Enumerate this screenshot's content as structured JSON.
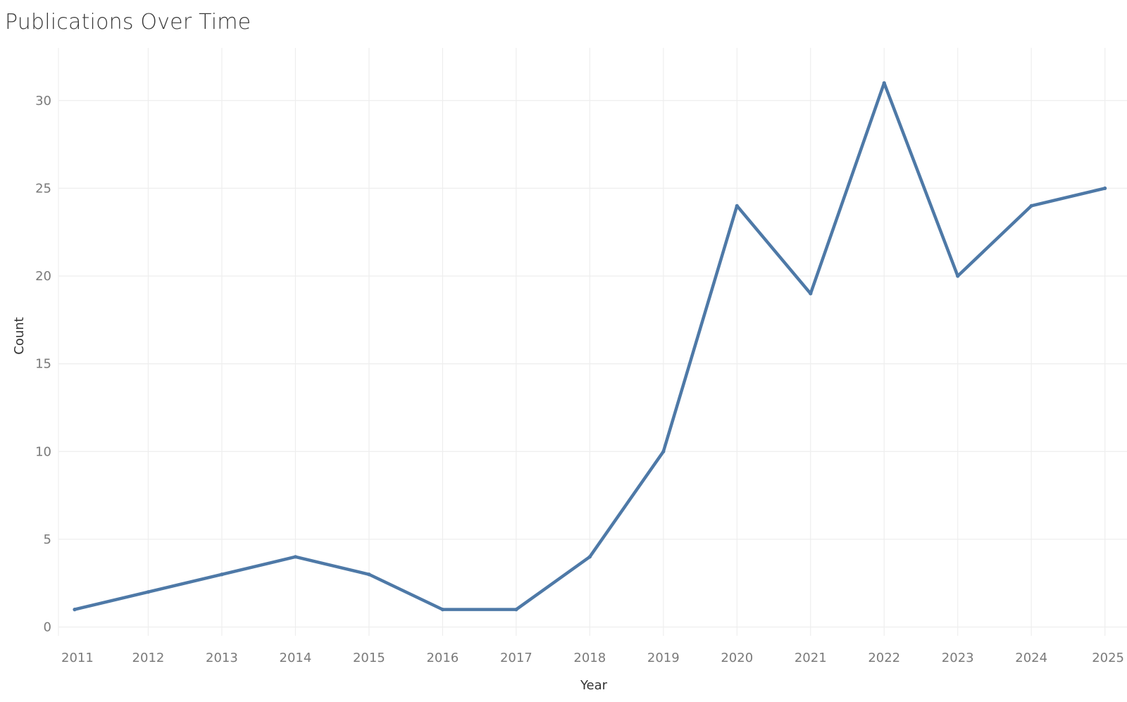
{
  "chart_data": {
    "type": "line",
    "title": "Publications Over Time",
    "xlabel": "Year",
    "ylabel": "Count",
    "x": [
      2011,
      2012,
      2013,
      2014,
      2015,
      2016,
      2017,
      2018,
      2019,
      2020,
      2021,
      2022,
      2023,
      2024,
      2025
    ],
    "series": [
      {
        "values": [
          1,
          2,
          3,
          4,
          3,
          1,
          1,
          4,
          10,
          24,
          19,
          31,
          20,
          24,
          25
        ]
      }
    ],
    "x_tick_labels": [
      "2011",
      "2012",
      "2013",
      "2014",
      "2015",
      "2016",
      "2017",
      "2018",
      "2019",
      "2020",
      "2021",
      "2022",
      "2023",
      "2024",
      "2025"
    ],
    "y_ticks": [
      0,
      5,
      10,
      15,
      20,
      25,
      30
    ],
    "y_tick_labels": [
      "0",
      "5",
      "10",
      "15",
      "20",
      "25",
      "30"
    ],
    "xlim": [
      2010.78,
      2025.3
    ],
    "ylim": [
      -0.5,
      33
    ],
    "grid": true,
    "legend": "none",
    "colors": {
      "line": "#4e79a7",
      "grid": "#eeeeee"
    }
  }
}
